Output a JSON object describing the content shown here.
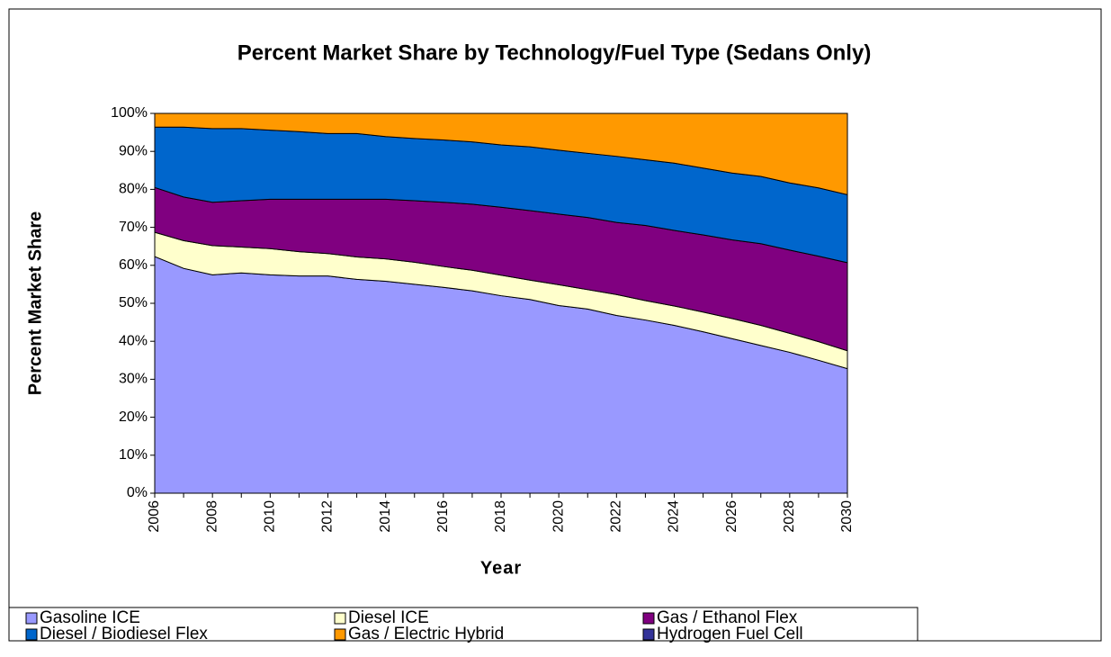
{
  "chart_data": {
    "type": "stacked_area",
    "title": "Percent Market Share by Technology/Fuel Type (Sedans Only)",
    "x_label": "Year",
    "y_label": "Percent Market Share",
    "x": [
      2006,
      2007,
      2008,
      2009,
      2010,
      2011,
      2012,
      2013,
      2014,
      2015,
      2016,
      2017,
      2018,
      2019,
      2020,
      2021,
      2022,
      2023,
      2024,
      2025,
      2026,
      2027,
      2028,
      2029,
      2030
    ],
    "xlim": [
      2006,
      2030
    ],
    "xticks": [
      2006,
      2008,
      2010,
      2012,
      2014,
      2016,
      2018,
      2020,
      2022,
      2024,
      2026,
      2028,
      2030
    ],
    "ylim": [
      0,
      100
    ],
    "yticks": [
      {
        "value": 0,
        "label": "0%"
      },
      {
        "value": 10,
        "label": "10%"
      },
      {
        "value": 20,
        "label": "20%"
      },
      {
        "value": 30,
        "label": "30%"
      },
      {
        "value": 40,
        "label": "40%"
      },
      {
        "value": 50,
        "label": "50%"
      },
      {
        "value": 60,
        "label": "60%"
      },
      {
        "value": 70,
        "label": "70%"
      },
      {
        "value": 80,
        "label": "80%"
      },
      {
        "value": 90,
        "label": "90%"
      },
      {
        "value": 100,
        "label": "100%"
      }
    ],
    "series": [
      {
        "name": "Gasoline ICE",
        "color": "#9999ff",
        "values": [
          62.3,
          59.2,
          57.5,
          58,
          57.5,
          57.2,
          57.2,
          56.3,
          55.8,
          55,
          54.2,
          53.3,
          52,
          51,
          49.4,
          48.5,
          46.8,
          45.6,
          44.2,
          42.5,
          40.7,
          38.9,
          37.1,
          35,
          32.8
        ]
      },
      {
        "name": "Diesel ICE",
        "color": "#ffffcc",
        "values": [
          6.4,
          7.3,
          7.7,
          6.8,
          6.9,
          6.4,
          5.9,
          5.9,
          5.9,
          5.8,
          5.5,
          5.4,
          5.4,
          5.1,
          5.5,
          5.1,
          5.5,
          5.1,
          5.1,
          5.2,
          5.3,
          5.3,
          5.0,
          4.9,
          4.7
        ]
      },
      {
        "name": "Gas / Ethanol Flex",
        "color": "#800080",
        "values": [
          11.8,
          11.5,
          11.4,
          12.2,
          13,
          13.8,
          14.3,
          15.2,
          15.7,
          16.2,
          16.9,
          17.4,
          17.9,
          18.3,
          18.6,
          19,
          19,
          19.8,
          19.9,
          20.3,
          20.7,
          21.5,
          21.9,
          22.5,
          23.2
        ]
      },
      {
        "name": "Diesel / Biodiesel Flex",
        "color": "#0066cc",
        "values": [
          15.9,
          18.4,
          19.4,
          19,
          18.2,
          17.8,
          17.3,
          17.3,
          16.5,
          16.4,
          16.4,
          16.4,
          16.4,
          16.8,
          16.8,
          16.9,
          17.4,
          17.3,
          17.7,
          17.6,
          17.6,
          17.7,
          17.7,
          18,
          17.9
        ]
      },
      {
        "name": "Gas / Electric Hybrid",
        "color": "#ff9900",
        "values": [
          3.6,
          3.6,
          4,
          4,
          4.4,
          4.8,
          5.3,
          5.3,
          6.1,
          6.6,
          7,
          7.5,
          8.3,
          8.8,
          9.7,
          10.5,
          11.3,
          12.2,
          13.1,
          14.4,
          15.7,
          16.6,
          18.3,
          19.6,
          21.4
        ]
      },
      {
        "name": "Hydrogen Fuel Cell",
        "color": "#333399",
        "values": [
          0,
          0,
          0,
          0,
          0,
          0,
          0,
          0,
          0,
          0,
          0,
          0,
          0,
          0,
          0,
          0,
          0,
          0,
          0,
          0,
          0,
          0,
          0,
          0,
          0
        ]
      }
    ]
  }
}
